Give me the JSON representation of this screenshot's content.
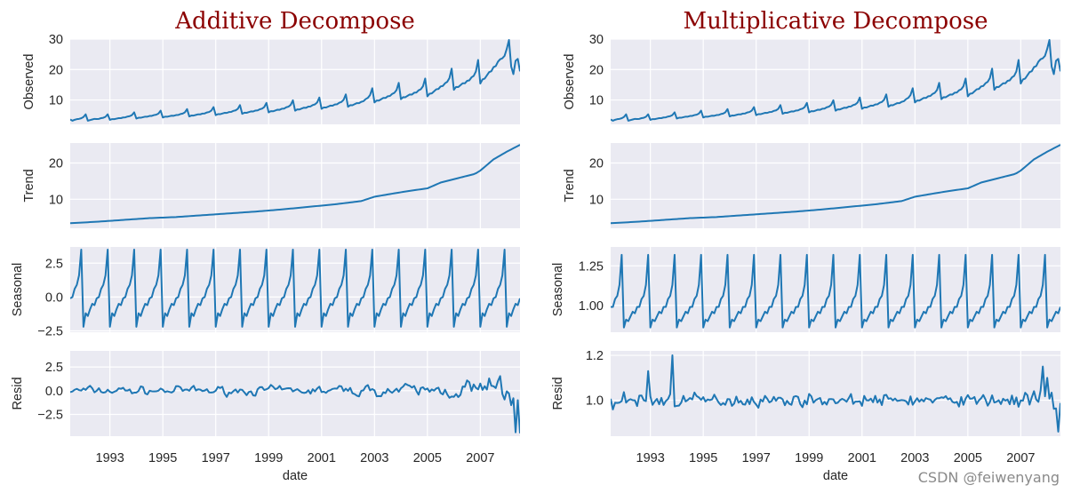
{
  "colors": {
    "panel_bg": "#eaeaf2",
    "grid": "#ffffff",
    "line": "#1f77b4",
    "title": "#8b0000"
  },
  "watermark": "CSDN @feiwenyang",
  "chart_data": [
    {
      "type": "line",
      "title": "Additive Decompose",
      "xlabel": "date",
      "x_start": 1991.5,
      "x_end": 2008.5,
      "x_ticks": [
        1993,
        1995,
        1997,
        1999,
        2001,
        2003,
        2005,
        2007
      ],
      "x_tick_labels": [
        "1993",
        "1995",
        "1997",
        "1999",
        "2001",
        "2003",
        "2005",
        "2007"
      ],
      "panels": [
        {
          "ylabel": "Observed",
          "ylim": [
            2,
            30
          ],
          "ticks": [
            10,
            20,
            30
          ],
          "tick_labels": [
            "10",
            "20",
            "30"
          ],
          "series": "observed"
        },
        {
          "ylabel": "Trend",
          "ylim": [
            2,
            25.5
          ],
          "ticks": [
            10,
            20
          ],
          "tick_labels": [
            "10",
            "20"
          ],
          "series": "trend"
        },
        {
          "ylabel": "Seasonal",
          "ylim": [
            -2.6,
            3.7
          ],
          "ticks": [
            -2.5,
            0,
            2.5
          ],
          "tick_labels": [
            "−2.5",
            "0.0",
            "2.5"
          ],
          "series": "seasonal"
        },
        {
          "ylabel": "Resid",
          "ylim": [
            -4.8,
            4.2
          ],
          "ticks": [
            -2.5,
            0,
            2.5
          ],
          "tick_labels": [
            "−2.5",
            "0.0",
            "2.5"
          ],
          "series": "resid"
        }
      ],
      "series_data": {
        "observed_start": [
          3.6,
          3.2,
          3.5,
          3.7,
          3.8,
          4.0,
          4.4,
          5.3,
          3.2,
          3.4,
          3.6,
          3.8
        ],
        "observed_end": [
          23.7,
          24.5,
          26.8,
          29.7,
          21.0,
          18.5,
          22.9,
          23.5,
          19.4
        ],
        "trend": [
          3.4,
          3.8,
          4.3,
          4.8,
          5.1,
          5.6,
          6.1,
          6.6,
          7.2,
          7.9,
          8.6,
          9.5,
          10.7,
          11.7,
          12.5,
          13.0,
          14.6,
          15.9,
          17.0,
          17.9,
          21.0,
          23.1,
          25.0
        ],
        "trend_years": [
          1991.5,
          1992.5,
          1993.5,
          1994.5,
          1995.5,
          1996.5,
          1997.5,
          1998.5,
          1999.5,
          2000.5,
          2001.5,
          2002.5,
          2003.0,
          2003.8,
          2004.5,
          2005.0,
          2005.5,
          2006.2,
          2006.8,
          2007.0,
          2007.5,
          2008.0,
          2008.5
        ],
        "seasonal_pattern": [
          -0.1,
          0.0,
          0.6,
          0.9,
          1.6,
          3.5,
          -2.2,
          -1.2,
          -1.4,
          -0.9,
          -0.5,
          -0.6
        ],
        "resid_amplitude": [
          0.8,
          0.8,
          0.8,
          0.8,
          0.8,
          0.8,
          0.8,
          0.8,
          0.9,
          1.0,
          1.0,
          1.2,
          1.4,
          2.4,
          3.4
        ],
        "resid_end": [
          -4.4,
          -1.0,
          -4.5
        ]
      }
    },
    {
      "type": "line",
      "title": "Multiplicative Decompose",
      "xlabel": "date",
      "x_start": 1991.5,
      "x_end": 2008.5,
      "x_ticks": [
        1993,
        1995,
        1997,
        1999,
        2001,
        2003,
        2005,
        2007
      ],
      "x_tick_labels": [
        "1993",
        "1995",
        "1997",
        "1999",
        "2001",
        "2003",
        "2005",
        "2007"
      ],
      "panels": [
        {
          "ylabel": "Observed",
          "ylim": [
            2,
            30
          ],
          "ticks": [
            10,
            20,
            30
          ],
          "tick_labels": [
            "10",
            "20",
            "30"
          ],
          "series": "observed"
        },
        {
          "ylabel": "Trend",
          "ylim": [
            2,
            25.5
          ],
          "ticks": [
            10,
            20
          ],
          "tick_labels": [
            "10",
            "20"
          ],
          "series": "trend"
        },
        {
          "ylabel": "Seasonal",
          "ylim": [
            0.83,
            1.37
          ],
          "ticks": [
            1.0,
            1.25
          ],
          "tick_labels": [
            "1.00",
            "1.25"
          ],
          "series": "seasonal"
        },
        {
          "ylabel": "Resid",
          "ylim": [
            0.84,
            1.22
          ],
          "ticks": [
            1.0,
            1.2
          ],
          "tick_labels": [
            "1.0",
            "1.2"
          ],
          "series": "resid"
        }
      ],
      "series_data": {
        "seasonal_pattern": [
          0.99,
          0.99,
          1.04,
          1.06,
          1.13,
          1.32,
          0.86,
          0.91,
          0.9,
          0.93,
          0.96,
          0.95
        ],
        "resid_amplitude": [
          0.06,
          0.06,
          0.05,
          0.05,
          0.05,
          0.04,
          0.04,
          0.04,
          0.04,
          0.04,
          0.04,
          0.04,
          0.05,
          0.06,
          0.08
        ],
        "resid_spikes": [
          [
            1992.9,
            1.13
          ],
          [
            1993.8,
            1.2
          ],
          [
            2007.8,
            1.15
          ],
          [
            2008.0,
            1.1
          ],
          [
            2008.4,
            0.86
          ]
        ]
      }
    }
  ]
}
